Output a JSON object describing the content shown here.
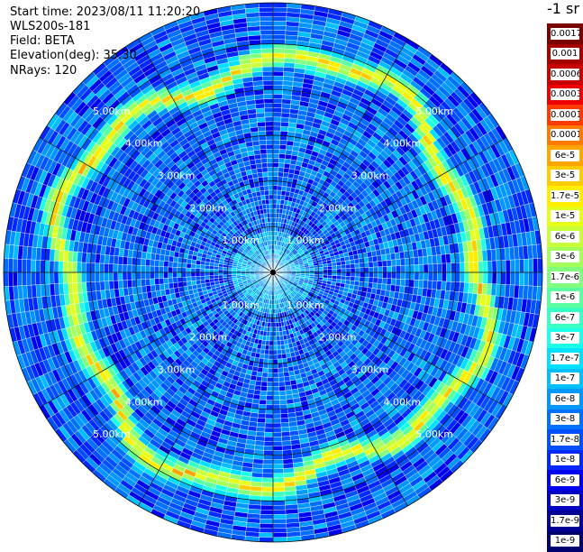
{
  "header": {
    "start_time": "Start time: 2023/08/11 11:20:20",
    "instrument": "WLS200s-181",
    "field": "Field: BETA",
    "elevation": "Elevation(deg): 35.30",
    "nrays": "NRays: 120"
  },
  "colorbar": {
    "title": "-1 sr",
    "labels": [
      "0.0017",
      "0.001",
      "0.0006",
      "0.0003",
      "0.00017",
      "0.0001",
      "6e-5",
      "3e-5",
      "1.7e-5",
      "1e-5",
      "6e-6",
      "3e-6",
      "1.7e-6",
      "1e-6",
      "6e-7",
      "3e-7",
      "1.7e-7",
      "1e-7",
      "6e-8",
      "3e-8",
      "1.7e-8",
      "1e-8",
      "6e-9",
      "3e-9",
      "1.7e-9",
      "1e-9"
    ],
    "colors": [
      "#7a0000",
      "#a50000",
      "#c80000",
      "#ee0000",
      "#ff3a00",
      "#ff7a00",
      "#ffa500",
      "#ffcc00",
      "#ffee00",
      "#e6ff1a",
      "#c8ff38",
      "#a5ff5a",
      "#82ff7c",
      "#5aff9f",
      "#38ffc2",
      "#1affe6",
      "#00e0ff",
      "#00bfff",
      "#0098ff",
      "#0070ff",
      "#0050ff",
      "#0028ff",
      "#0000f0",
      "#0000c0",
      "#000095",
      "#00006e"
    ]
  },
  "chart_data": {
    "type": "heatmap",
    "projection": "polar (PPI scan)",
    "field": "BETA",
    "elevation_deg": 35.3,
    "nrays": 120,
    "range_rings_km": [
      1,
      2,
      3,
      4,
      5
    ],
    "ring_labels": [
      "1.00km",
      "2.00km",
      "3.00km",
      "4.00km",
      "5.00km"
    ],
    "max_range_km": 5.9,
    "azimuth_spokes": 12,
    "scale": "log",
    "color_range": [
      1e-09,
      0.0017
    ],
    "features": {
      "enhanced_backscatter_ring_km": [
        4.2,
        5.0
      ],
      "enhanced_backscatter_value_approx": 1.7e-05,
      "background_value_approx": 3e-08
    }
  }
}
